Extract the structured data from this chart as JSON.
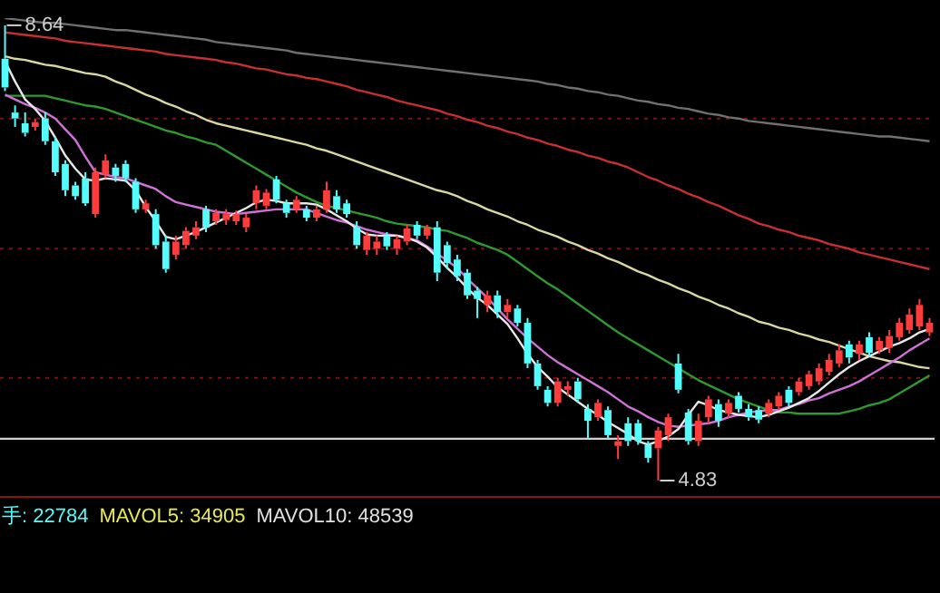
{
  "chart_data": {
    "type": "candlestick",
    "categories": [
      null,
      null,
      null,
      null,
      null,
      null,
      null,
      null,
      null,
      null,
      null,
      null,
      null,
      null,
      null,
      null,
      null,
      null,
      null,
      null,
      null,
      null,
      null,
      null,
      null,
      null,
      null,
      null,
      null,
      null,
      null,
      null,
      null,
      null,
      null,
      null,
      null,
      null,
      null,
      null,
      null,
      null,
      null,
      null,
      null,
      null,
      null,
      null,
      null,
      null,
      null,
      null,
      null,
      null,
      null,
      null,
      null,
      null,
      null,
      null,
      null,
      null,
      null,
      null,
      null,
      null,
      null,
      null,
      null,
      null,
      null,
      null,
      null,
      null,
      null,
      null,
      null,
      null,
      null,
      null,
      null,
      null,
      null,
      null,
      null,
      null,
      null,
      null,
      null,
      null,
      null,
      null,
      null
    ],
    "ohlc": [
      [
        8.36,
        8.64,
        8.09,
        8.12
      ],
      [
        7.91,
        7.97,
        7.79,
        7.86
      ],
      [
        7.82,
        7.91,
        7.71,
        7.74
      ],
      [
        7.79,
        7.86,
        7.76,
        7.83
      ],
      [
        7.86,
        7.91,
        7.64,
        7.67
      ],
      [
        7.67,
        7.71,
        7.38,
        7.41
      ],
      [
        7.48,
        7.51,
        7.21,
        7.26
      ],
      [
        7.3,
        7.33,
        7.18,
        7.21
      ],
      [
        7.36,
        7.41,
        7.13,
        7.15
      ],
      [
        7.06,
        7.45,
        7.03,
        7.41
      ],
      [
        7.39,
        7.56,
        7.36,
        7.51
      ],
      [
        7.45,
        7.48,
        7.33,
        7.38
      ],
      [
        7.48,
        7.51,
        7.33,
        7.36
      ],
      [
        7.33,
        7.36,
        7.07,
        7.1
      ],
      [
        7.1,
        7.18,
        7.07,
        7.15
      ],
      [
        7.06,
        7.1,
        6.77,
        6.8
      ],
      [
        6.83,
        6.88,
        6.57,
        6.6
      ],
      [
        6.72,
        6.88,
        6.68,
        6.83
      ],
      [
        6.8,
        6.95,
        6.77,
        6.92
      ],
      [
        6.88,
        7.0,
        6.85,
        6.95
      ],
      [
        7.1,
        7.13,
        6.91,
        6.95
      ],
      [
        7.0,
        7.1,
        6.97,
        7.07
      ],
      [
        7.01,
        7.1,
        6.97,
        7.06
      ],
      [
        7.0,
        7.09,
        6.97,
        7.06
      ],
      [
        6.95,
        7.06,
        6.91,
        7.03
      ],
      [
        7.15,
        7.3,
        7.1,
        7.26
      ],
      [
        7.13,
        7.27,
        7.1,
        7.24
      ],
      [
        7.35,
        7.38,
        7.15,
        7.18
      ],
      [
        7.15,
        7.18,
        7.03,
        7.07
      ],
      [
        7.1,
        7.21,
        7.07,
        7.18
      ],
      [
        7.1,
        7.13,
        7.0,
        7.03
      ],
      [
        7.03,
        7.13,
        7.0,
        7.1
      ],
      [
        7.1,
        7.33,
        7.07,
        7.26
      ],
      [
        7.21,
        7.26,
        7.07,
        7.1
      ],
      [
        7.15,
        7.18,
        7.03,
        7.06
      ],
      [
        6.95,
        7.0,
        6.77,
        6.8
      ],
      [
        6.76,
        6.91,
        6.72,
        6.88
      ],
      [
        6.77,
        6.88,
        6.72,
        6.83
      ],
      [
        6.88,
        6.91,
        6.76,
        6.79
      ],
      [
        6.77,
        6.88,
        6.72,
        6.85
      ],
      [
        6.83,
        6.97,
        6.8,
        6.94
      ],
      [
        6.97,
        7.0,
        6.85,
        6.88
      ],
      [
        6.88,
        6.97,
        6.85,
        6.95
      ],
      [
        6.95,
        7.0,
        6.5,
        6.57
      ],
      [
        6.8,
        6.83,
        6.6,
        6.65
      ],
      [
        6.68,
        6.72,
        6.5,
        6.54
      ],
      [
        6.57,
        6.6,
        6.35,
        6.38
      ],
      [
        6.42,
        6.45,
        6.19,
        6.35
      ],
      [
        6.3,
        6.42,
        6.24,
        6.38
      ],
      [
        6.38,
        6.42,
        6.19,
        6.24
      ],
      [
        6.24,
        6.35,
        6.19,
        6.3
      ],
      [
        6.27,
        6.3,
        6.12,
        6.15
      ],
      [
        6.15,
        6.19,
        5.77,
        5.81
      ],
      [
        5.81,
        5.84,
        5.59,
        5.62
      ],
      [
        5.59,
        5.62,
        5.45,
        5.48
      ],
      [
        5.48,
        5.69,
        5.45,
        5.66
      ],
      [
        5.59,
        5.66,
        5.54,
        5.62
      ],
      [
        5.66,
        5.69,
        5.48,
        5.51
      ],
      [
        5.43,
        5.47,
        5.18,
        5.33
      ],
      [
        5.36,
        5.51,
        5.33,
        5.48
      ],
      [
        5.42,
        5.45,
        5.18,
        5.21
      ],
      [
        5.12,
        5.21,
        5.01,
        5.16
      ],
      [
        5.31,
        5.36,
        5.12,
        5.16
      ],
      [
        5.31,
        5.34,
        5.13,
        5.16
      ],
      [
        5.13,
        5.16,
        4.98,
        5.02
      ],
      [
        5.1,
        5.28,
        4.83,
        5.25
      ],
      [
        5.21,
        5.39,
        5.16,
        5.36
      ],
      [
        5.81,
        5.89,
        5.56,
        5.59
      ],
      [
        5.4,
        5.43,
        5.13,
        5.16
      ],
      [
        5.16,
        5.39,
        5.12,
        5.33
      ],
      [
        5.36,
        5.54,
        5.31,
        5.51
      ],
      [
        5.47,
        5.51,
        5.28,
        5.33
      ],
      [
        5.39,
        5.51,
        5.36,
        5.48
      ],
      [
        5.54,
        5.57,
        5.4,
        5.43
      ],
      [
        5.43,
        5.47,
        5.33,
        5.36
      ],
      [
        5.42,
        5.45,
        5.31,
        5.34
      ],
      [
        5.39,
        5.51,
        5.36,
        5.48
      ],
      [
        5.45,
        5.57,
        5.42,
        5.54
      ],
      [
        5.59,
        5.62,
        5.45,
        5.48
      ],
      [
        5.57,
        5.69,
        5.54,
        5.66
      ],
      [
        5.62,
        5.75,
        5.59,
        5.72
      ],
      [
        5.66,
        5.81,
        5.63,
        5.77
      ],
      [
        5.74,
        5.89,
        5.71,
        5.84
      ],
      [
        5.81,
        5.97,
        5.78,
        5.92
      ],
      [
        5.97,
        6.0,
        5.81,
        5.86
      ],
      [
        5.89,
        6.0,
        5.84,
        5.97
      ],
      [
        6.03,
        6.07,
        5.87,
        5.9
      ],
      [
        5.92,
        6.03,
        5.89,
        6.0
      ],
      [
        5.94,
        6.09,
        5.9,
        6.04
      ],
      [
        6.03,
        6.19,
        6.0,
        6.15
      ],
      [
        6.09,
        6.27,
        6.06,
        6.22
      ],
      [
        6.12,
        6.35,
        6.09,
        6.3
      ],
      [
        6.07,
        6.19,
        6.04,
        6.15
      ]
    ],
    "series": [
      {
        "type": "line",
        "color": "#e8e8e8",
        "values": [
          8.34,
          8.17,
          8.02,
          7.94,
          7.84,
          7.7,
          7.55,
          7.44,
          7.35,
          7.34,
          7.36,
          7.35,
          7.34,
          7.26,
          7.12,
          7.0,
          6.87,
          6.85,
          6.88,
          6.91,
          6.95,
          6.99,
          7.03,
          7.07,
          7.11,
          7.16,
          7.18,
          7.17,
          7.15,
          7.15,
          7.15,
          7.14,
          7.1,
          7.05,
          7.0,
          6.94,
          6.89,
          6.88,
          6.88,
          6.88,
          6.86,
          6.83,
          6.78,
          6.7,
          6.61,
          6.53,
          6.44,
          6.36,
          6.3,
          6.22,
          6.14,
          6.02,
          5.89,
          5.78,
          5.7,
          5.61,
          5.55,
          5.49,
          5.43,
          5.38,
          5.32,
          5.27,
          5.22,
          5.16,
          5.13,
          5.16,
          5.2,
          5.26,
          5.38,
          5.49,
          5.46,
          5.42,
          5.4,
          5.38,
          5.37,
          5.36,
          5.38,
          5.41,
          5.44,
          5.48,
          5.52,
          5.58,
          5.65,
          5.72,
          5.78,
          5.83,
          5.87,
          5.91,
          5.95,
          5.98,
          6.02,
          6.07,
          6.1
        ]
      },
      {
        "type": "line",
        "color": "#d070d8",
        "values": [
          8.06,
          8.02,
          7.98,
          7.95,
          7.91,
          7.86,
          7.77,
          7.68,
          7.54,
          7.41,
          7.39,
          7.37,
          7.36,
          7.33,
          7.3,
          7.27,
          7.21,
          7.16,
          7.14,
          7.12,
          7.1,
          7.08,
          7.07,
          7.06,
          7.07,
          7.08,
          7.09,
          7.1,
          7.1,
          7.1,
          7.1,
          7.07,
          7.04,
          7.01,
          6.99,
          6.96,
          6.93,
          6.91,
          6.89,
          6.88,
          6.86,
          6.84,
          6.79,
          6.73,
          6.67,
          6.61,
          6.52,
          6.44,
          6.36,
          6.27,
          6.18,
          6.1,
          6.02,
          5.95,
          5.88,
          5.82,
          5.77,
          5.72,
          5.67,
          5.62,
          5.57,
          5.51,
          5.45,
          5.41,
          5.36,
          5.32,
          5.29,
          5.28,
          5.29,
          5.3,
          5.31,
          5.33,
          5.36,
          5.38,
          5.4,
          5.41,
          5.42,
          5.42,
          5.45,
          5.47,
          5.5,
          5.52,
          5.56,
          5.59,
          5.62,
          5.66,
          5.71,
          5.76,
          5.81,
          5.86,
          5.92,
          5.97,
          6.02
        ]
      },
      {
        "type": "line",
        "color": "#2e9a2e",
        "values": [
          8.05,
          8.05,
          8.05,
          8.05,
          8.05,
          8.03,
          8.01,
          7.99,
          7.97,
          7.96,
          7.94,
          7.91,
          7.88,
          7.85,
          7.82,
          7.79,
          7.76,
          7.74,
          7.71,
          7.69,
          7.66,
          7.64,
          7.59,
          7.54,
          7.49,
          7.44,
          7.39,
          7.34,
          7.29,
          7.24,
          7.2,
          7.16,
          7.13,
          7.11,
          7.09,
          7.07,
          7.05,
          7.03,
          7.0,
          6.98,
          6.97,
          6.96,
          6.95,
          6.93,
          6.92,
          6.89,
          6.86,
          6.82,
          6.79,
          6.76,
          6.72,
          6.66,
          6.6,
          6.54,
          6.48,
          6.43,
          6.37,
          6.31,
          6.25,
          6.19,
          6.13,
          6.07,
          6.02,
          5.97,
          5.92,
          5.87,
          5.82,
          5.77,
          5.72,
          5.67,
          5.63,
          5.59,
          5.55,
          5.51,
          5.48,
          5.45,
          5.42,
          5.4,
          5.4,
          5.39,
          5.39,
          5.39,
          5.39,
          5.39,
          5.41,
          5.43,
          5.46,
          5.48,
          5.51,
          5.56,
          5.61,
          5.66,
          5.71
        ]
      },
      {
        "type": "line",
        "color": "#d8d8a0",
        "values": [
          8.38,
          8.36,
          8.35,
          8.33,
          8.31,
          8.3,
          8.28,
          8.26,
          8.24,
          8.23,
          8.21,
          8.17,
          8.14,
          8.1,
          8.06,
          8.03,
          7.99,
          7.96,
          7.92,
          7.89,
          7.85,
          7.82,
          7.8,
          7.78,
          7.76,
          7.74,
          7.72,
          7.7,
          7.68,
          7.66,
          7.64,
          7.61,
          7.59,
          7.56,
          7.53,
          7.5,
          7.47,
          7.44,
          7.41,
          7.38,
          7.35,
          7.32,
          7.29,
          7.26,
          7.24,
          7.21,
          7.17,
          7.14,
          7.1,
          7.07,
          7.04,
          7.0,
          6.97,
          6.93,
          6.9,
          6.87,
          6.83,
          6.8,
          6.76,
          6.73,
          6.69,
          6.66,
          6.62,
          6.58,
          6.55,
          6.51,
          6.48,
          6.44,
          6.41,
          6.37,
          6.34,
          6.3,
          6.27,
          6.23,
          6.2,
          6.16,
          6.14,
          6.11,
          6.09,
          6.06,
          6.04,
          6.01,
          5.99,
          5.96,
          5.93,
          5.9,
          5.87,
          5.85,
          5.83,
          5.82,
          5.8,
          5.78,
          5.77
        ]
      },
      {
        "type": "line",
        "color": "#c83030",
        "values": [
          8.58,
          8.57,
          8.56,
          8.55,
          8.54,
          8.53,
          8.51,
          8.5,
          8.49,
          8.48,
          8.47,
          8.46,
          8.45,
          8.44,
          8.43,
          8.42,
          8.4,
          8.39,
          8.38,
          8.37,
          8.36,
          8.35,
          8.33,
          8.32,
          8.3,
          8.28,
          8.27,
          8.25,
          8.23,
          8.22,
          8.2,
          8.19,
          8.17,
          8.15,
          8.13,
          8.1,
          8.08,
          8.06,
          8.04,
          8.01,
          7.99,
          7.97,
          7.95,
          7.93,
          7.9,
          7.88,
          7.85,
          7.83,
          7.8,
          7.78,
          7.75,
          7.73,
          7.7,
          7.68,
          7.65,
          7.63,
          7.6,
          7.58,
          7.55,
          7.53,
          7.5,
          7.48,
          7.45,
          7.41,
          7.37,
          7.34,
          7.3,
          7.27,
          7.23,
          7.2,
          7.16,
          7.13,
          7.09,
          7.05,
          7.02,
          6.98,
          6.96,
          6.93,
          6.91,
          6.88,
          6.86,
          6.84,
          6.81,
          6.79,
          6.77,
          6.74,
          6.72,
          6.7,
          6.68,
          6.66,
          6.64,
          6.62,
          6.6
        ]
      },
      {
        "type": "line",
        "color": "#707070",
        "values": [
          8.7,
          8.69,
          8.68,
          8.67,
          8.66,
          8.66,
          8.65,
          8.64,
          8.63,
          8.62,
          8.61,
          8.6,
          8.6,
          8.59,
          8.58,
          8.57,
          8.56,
          8.55,
          8.54,
          8.53,
          8.52,
          8.5,
          8.49,
          8.48,
          8.47,
          8.46,
          8.45,
          8.44,
          8.43,
          8.41,
          8.4,
          8.39,
          8.38,
          8.37,
          8.36,
          8.35,
          8.34,
          8.33,
          8.32,
          8.31,
          8.3,
          8.29,
          8.28,
          8.27,
          8.26,
          8.25,
          8.24,
          8.23,
          8.22,
          8.21,
          8.2,
          8.19,
          8.18,
          8.17,
          8.15,
          8.14,
          8.12,
          8.11,
          8.09,
          8.08,
          8.06,
          8.05,
          8.03,
          8.01,
          8.0,
          7.98,
          7.97,
          7.95,
          7.94,
          7.92,
          7.9,
          7.89,
          7.87,
          7.86,
          7.84,
          7.83,
          7.82,
          7.81,
          7.8,
          7.79,
          7.78,
          7.77,
          7.76,
          7.75,
          7.74,
          7.73,
          7.72,
          7.71,
          7.71,
          7.7,
          7.69,
          7.68,
          7.67
        ]
      }
    ],
    "yticks": [
      {
        "value": 5.69,
        "label": null
      },
      {
        "value": 6.77,
        "label": null
      },
      {
        "value": 7.86,
        "label": null
      }
    ],
    "grid": "y",
    "legend": false,
    "ref_lines": [
      {
        "axis": "y",
        "value": 5.18,
        "color": "#d0d0d0"
      }
    ],
    "annotations": [
      {
        "text": "8.64",
        "y": 8.64
      },
      "4.83",
      "手: 22784",
      "MAVOL5: 34905",
      "MAVOL10: 48539"
    ]
  }
}
